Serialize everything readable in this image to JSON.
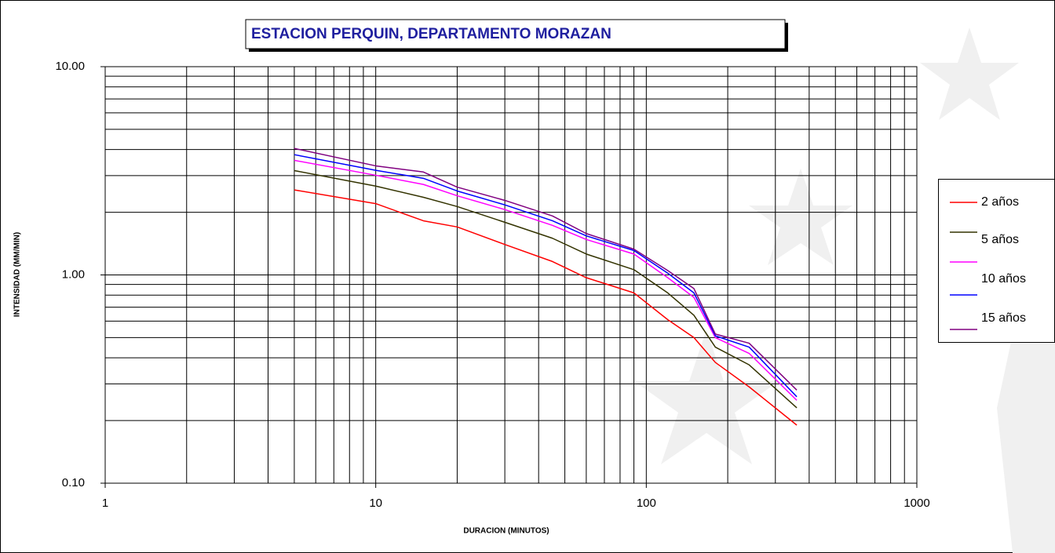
{
  "chart_data": {
    "type": "line",
    "title": "ESTACION PERQUIN, DEPARTAMENTO MORAZAN",
    "x_label": "DURACION (MINUTOS)",
    "y_label": "INTENSIDAD (MM/MIN)",
    "x": [
      5,
      10,
      15,
      20,
      30,
      45,
      60,
      90,
      120,
      150,
      180,
      240,
      360
    ],
    "series": [
      {
        "name": "2 años",
        "color": "#ff0000",
        "values": [
          2.56,
          2.2,
          1.82,
          1.7,
          1.4,
          1.16,
          0.97,
          0.82,
          0.61,
          0.5,
          0.38,
          0.29,
          0.19
        ]
      },
      {
        "name": "5 años",
        "color": "#333300",
        "values": [
          3.17,
          2.67,
          2.36,
          2.13,
          1.79,
          1.5,
          1.26,
          1.06,
          0.82,
          0.64,
          0.45,
          0.37,
          0.23
        ]
      },
      {
        "name": "10 años",
        "color": "#ff00ff",
        "values": [
          3.55,
          3.01,
          2.72,
          2.4,
          2.06,
          1.73,
          1.48,
          1.26,
          0.97,
          0.78,
          0.5,
          0.42,
          0.25
        ]
      },
      {
        "name": null,
        "color": "#0000ff",
        "values": [
          3.78,
          3.18,
          2.91,
          2.53,
          2.17,
          1.82,
          1.54,
          1.31,
          1.02,
          0.82,
          0.51,
          0.45,
          0.26
        ]
      },
      {
        "name": "15 años",
        "color": "#800080",
        "values": [
          4.05,
          3.34,
          3.12,
          2.64,
          2.28,
          1.92,
          1.58,
          1.33,
          1.05,
          0.86,
          0.52,
          0.47,
          0.28
        ]
      }
    ],
    "x_scale": "log",
    "y_scale": "log",
    "xlim": [
      1,
      1000
    ],
    "ylim": [
      0.1,
      10
    ],
    "xticks": [
      1,
      10,
      100,
      1000
    ],
    "yticks": [
      {
        "value": 0.1,
        "label": "0.10"
      },
      {
        "value": 1,
        "label": "1.00"
      },
      {
        "value": 10,
        "label": "10.00"
      }
    ],
    "x_minor_ticks": [
      2,
      3,
      4,
      5,
      6,
      7,
      8,
      9,
      20,
      30,
      40,
      50,
      60,
      70,
      80,
      90,
      200,
      300,
      400,
      500,
      600,
      700,
      800,
      900
    ],
    "y_minor_ticks": [
      0.2,
      0.3,
      0.4,
      0.5,
      0.6,
      0.7,
      0.8,
      0.9,
      2,
      3,
      4,
      5,
      6,
      7,
      8,
      9
    ],
    "grid": true,
    "legend": "right"
  }
}
